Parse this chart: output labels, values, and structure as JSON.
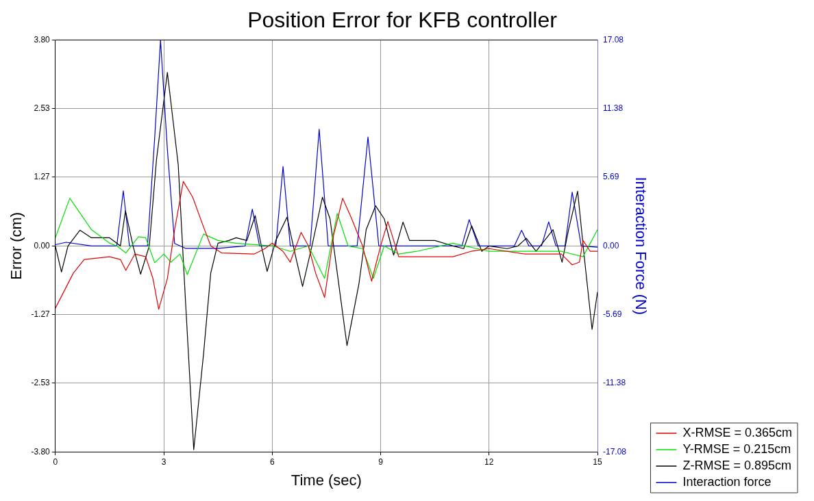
{
  "chart_data": {
    "type": "line",
    "title": "Position Error for KFB controller",
    "xlabel": "Time (sec)",
    "ylabel": "Error (cm)",
    "y2label": "Interaction Force (N)",
    "xlim": [
      0,
      15
    ],
    "xticks": [
      0,
      3,
      6,
      9,
      12,
      15
    ],
    "ylim": [
      -3.8,
      3.8
    ],
    "yticks": [
      {
        "value": -3.8,
        "label": "-3.80"
      },
      {
        "value": -2.53,
        "label": "-2.53"
      },
      {
        "value": -1.27,
        "label": "-1.27"
      },
      {
        "value": 0,
        "label": "0.00"
      },
      {
        "value": 1.27,
        "label": "1.27"
      },
      {
        "value": 2.53,
        "label": "2.53"
      },
      {
        "value": 3.8,
        "label": "3.80"
      }
    ],
    "y2lim": [
      -17.08,
      17.08
    ],
    "y2ticks": [
      {
        "value": -17.08,
        "label": "-17.08"
      },
      {
        "value": -11.38,
        "label": "-11.38"
      },
      {
        "value": -5.69,
        "label": "-5.69"
      },
      {
        "value": 0,
        "label": "0.00"
      },
      {
        "value": 5.69,
        "label": "5.69"
      },
      {
        "value": 11.38,
        "label": "11.38"
      },
      {
        "value": 17.08,
        "label": "17.08"
      }
    ],
    "grid": true,
    "legend": "bottom right",
    "marker": "none",
    "line_style": "solid",
    "series": [
      {
        "name": "X-RMSE = 0.365cm",
        "color": "#e00000",
        "x": [
          0,
          0.5,
          0.8,
          1.5,
          1.8,
          1.95,
          2.2,
          2.5,
          2.7,
          2.86,
          3.1,
          3.3,
          3.54,
          3.8,
          4.1,
          4.3,
          4.6,
          5.5,
          5.8,
          6.0,
          6.3,
          6.5,
          6.8,
          7.0,
          7.2,
          7.45,
          7.7,
          7.95,
          8.2,
          8.5,
          8.75,
          9.0,
          9.2,
          9.5,
          10,
          11,
          11.5,
          12,
          13,
          14,
          14.3,
          14.5,
          14.6,
          14.8,
          15
        ],
        "values": [
          -1.15,
          -0.5,
          -0.25,
          -0.2,
          -0.25,
          -0.45,
          -0.15,
          -0.2,
          -0.6,
          -1.17,
          -0.6,
          0.3,
          1.19,
          0.9,
          0.35,
          0,
          -0.13,
          -0.15,
          -0.05,
          0.05,
          -0.1,
          -0.3,
          0.25,
          0,
          -0.5,
          -0.95,
          0.2,
          0.88,
          0.5,
          0,
          -0.65,
          0,
          0.45,
          -0.2,
          -0.2,
          -0.2,
          -0.1,
          -0.05,
          -0.15,
          -0.15,
          -0.35,
          -0.3,
          0.1,
          -0.1,
          -0.1
        ]
      },
      {
        "name": "Y-RMSE = 0.215cm",
        "color": "#00e000",
        "x": [
          0,
          0.4,
          1.0,
          1.5,
          1.7,
          1.95,
          2.3,
          2.5,
          2.75,
          3.0,
          3.2,
          3.45,
          3.65,
          4.1,
          4.5,
          5.0,
          6.0,
          6.5,
          7.0,
          7.45,
          7.8,
          8.1,
          8.5,
          8.8,
          9.1,
          9.5,
          10,
          11,
          12,
          13,
          14,
          14.6,
          15
        ],
        "values": [
          0.15,
          0.88,
          0.3,
          0.05,
          0,
          -0.13,
          0.17,
          0.15,
          -0.31,
          -0.15,
          -0.3,
          -0.15,
          -0.53,
          0.22,
          0.1,
          0.05,
          0,
          -0.1,
          0,
          -0.6,
          0.6,
          0,
          -0.05,
          -0.6,
          0.0,
          -0.15,
          -0.1,
          0.05,
          -0.1,
          -0.1,
          -0.1,
          -0.2,
          0.3
        ]
      },
      {
        "name": "Z-RMSE = 0.895cm",
        "color": "#000000",
        "x": [
          0,
          0.17,
          0.35,
          0.68,
          1.0,
          1.5,
          1.8,
          1.94,
          2.15,
          2.36,
          2.6,
          2.8,
          3.1,
          3.4,
          3.6,
          3.83,
          4.1,
          4.3,
          4.5,
          4.8,
          5.0,
          5.3,
          5.53,
          5.7,
          5.86,
          6.1,
          6.41,
          6.65,
          6.84,
          7.1,
          7.39,
          7.6,
          7.8,
          8.07,
          8.4,
          8.6,
          8.86,
          9.1,
          9.36,
          9.62,
          9.8,
          10.5,
          11.0,
          11.3,
          11.52,
          11.8,
          12,
          12.5,
          12.8,
          13.03,
          13.3,
          13.77,
          14.02,
          14.2,
          14.45,
          14.65,
          14.85,
          15
        ],
        "values": [
          0,
          -0.48,
          0,
          0.29,
          0.15,
          0.15,
          0,
          0.65,
          0,
          -0.52,
          0,
          1.6,
          3.2,
          1.5,
          -1.0,
          -3.76,
          -2.0,
          -0.5,
          0.05,
          0.1,
          0.15,
          0.1,
          0.56,
          0,
          -0.47,
          0.1,
          0.53,
          -0.2,
          -0.75,
          0,
          0.9,
          0.5,
          -0.5,
          -1.84,
          -0.7,
          0.3,
          0.74,
          0.5,
          -0.17,
          0.44,
          0.1,
          0.1,
          0,
          -0.05,
          0.37,
          -0.1,
          0,
          -0.05,
          0,
          0.14,
          -0.1,
          0.3,
          -0.3,
          0.3,
          1.01,
          -0.3,
          -1.54,
          -0.85
        ]
      },
      {
        "name": "Interaction force",
        "color": "#0000cc",
        "axis": "y2",
        "x": [
          0,
          0.3,
          1.0,
          1.7,
          1.88,
          2.05,
          2.55,
          2.75,
          2.91,
          3.1,
          3.3,
          3.6,
          4.5,
          5.25,
          5.45,
          5.65,
          6.1,
          6.3,
          6.5,
          7.05,
          7.3,
          7.55,
          8.35,
          8.65,
          8.95,
          9.5,
          11.25,
          11.45,
          11.7,
          12.7,
          12.9,
          13.1,
          13.45,
          13.65,
          13.85,
          14.1,
          14.3,
          14.55,
          15
        ],
        "values": [
          0.1,
          0.3,
          0,
          0,
          4.57,
          0,
          0,
          9,
          17.08,
          8,
          0.2,
          -0.2,
          -0.2,
          0,
          3.05,
          0,
          0,
          6.58,
          0,
          0,
          9.68,
          0,
          0,
          9.03,
          0,
          0,
          0,
          2.18,
          0,
          0,
          1.3,
          0,
          0,
          2.0,
          0,
          0,
          4.46,
          0,
          -0.1
        ]
      }
    ]
  }
}
